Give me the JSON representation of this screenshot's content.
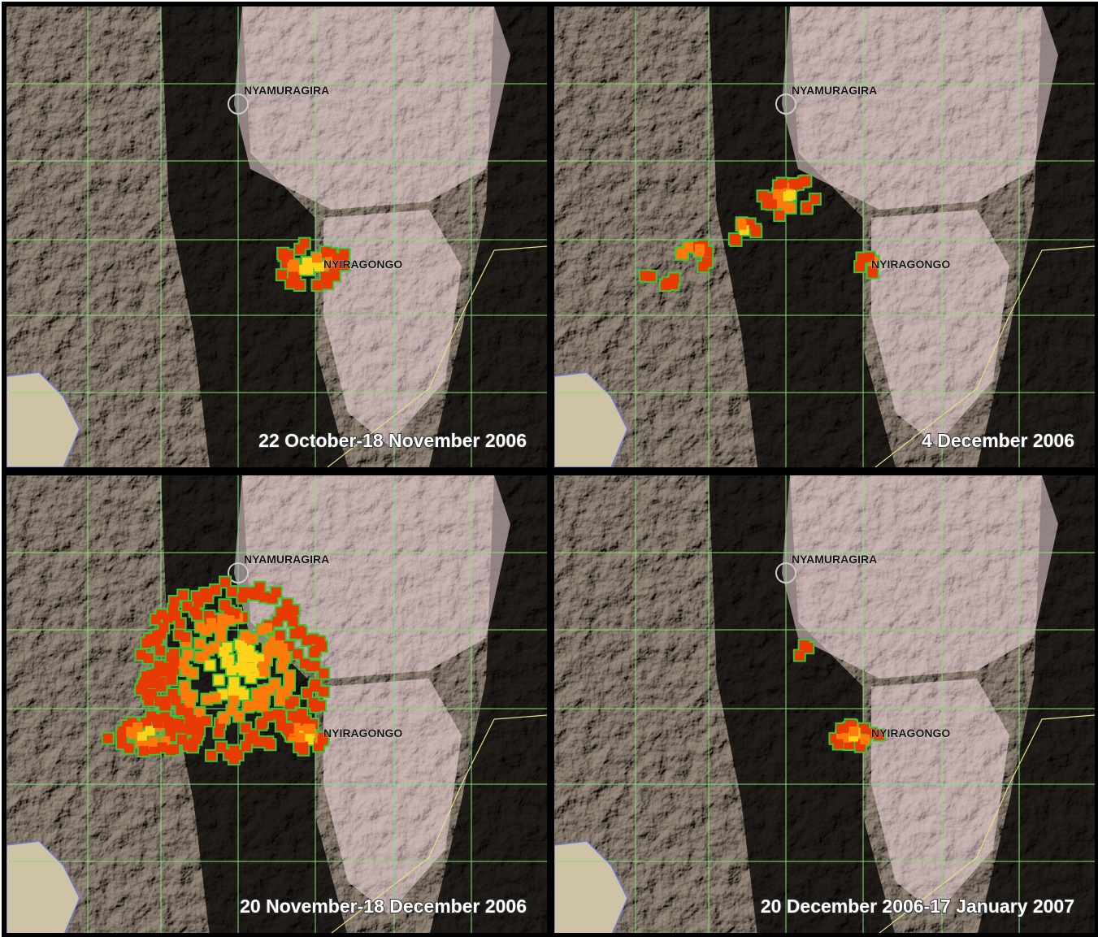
{
  "panels": [
    {
      "labels": {
        "north": "NYAMURAGIRA",
        "south": "NYIRAGONGO"
      },
      "caption": "22 October-18 November 2006"
    },
    {
      "labels": {
        "north": "NYAMURAGIRA",
        "south": "NYIRAGONGO"
      },
      "caption": "4 December 2006"
    },
    {
      "labels": {
        "north": "NYAMURAGIRA",
        "south": "NYIRAGONGO"
      },
      "caption": "20 November-18 December 2006"
    },
    {
      "labels": {
        "north": "NYAMURAGIRA",
        "south": "NYIRAGONGO"
      },
      "caption": "20 December 2006-17 January 2007"
    }
  ]
}
